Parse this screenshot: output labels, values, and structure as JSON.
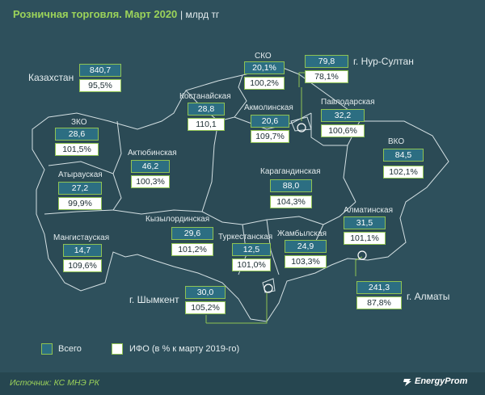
{
  "header": {
    "title": "Розничная торговля. Март 2020",
    "unit": "| млрд тг"
  },
  "kazakhstan": {
    "name": "Казахстан",
    "total": "840,7",
    "index": "95,5%"
  },
  "regions": [
    {
      "id": "sko",
      "name": "СКО",
      "total": "20,1%",
      "index": "100,2%"
    },
    {
      "id": "nur-sultan",
      "name": "г. Нур-Султан",
      "total": "79,8",
      "index": "78,1%"
    },
    {
      "id": "kostanay",
      "name": "Костанайская",
      "total": "28,8",
      "index": "110,1"
    },
    {
      "id": "akmola",
      "name": "Акмолинская",
      "total": "20,6",
      "index": "109,7%"
    },
    {
      "id": "pavlodar",
      "name": "Павлодарская",
      "total": "32,2",
      "index": "100,6%"
    },
    {
      "id": "zko",
      "name": "ЗКО",
      "total": "28,6",
      "index": "101,5%"
    },
    {
      "id": "aktobe",
      "name": "Актюбинская",
      "total": "46,2",
      "index": "100,3%"
    },
    {
      "id": "vko",
      "name": "ВКО",
      "total": "84,5",
      "index": "102,1%"
    },
    {
      "id": "atyrau",
      "name": "Атырауская",
      "total": "27,2",
      "index": "99,9%"
    },
    {
      "id": "karaganda",
      "name": "Карагандинская",
      "total": "88,0",
      "index": "104,3%"
    },
    {
      "id": "almaty-region",
      "name": "Алматинская",
      "total": "31,5",
      "index": "101,1%"
    },
    {
      "id": "kyzylorda",
      "name": "Кызылординская",
      "total": "29,6",
      "index": "101,2%"
    },
    {
      "id": "mangystau",
      "name": "Мангистауская",
      "total": "14,7",
      "index": "109,6%"
    },
    {
      "id": "turkestan",
      "name": "Туркестанская",
      "total": "12,5",
      "index": "101,0%"
    },
    {
      "id": "zhambyl",
      "name": "Жамбылская",
      "total": "24,9",
      "index": "103,3%"
    },
    {
      "id": "almaty-city",
      "name": "г. Алматы",
      "total": "241,3",
      "index": "87,8%"
    },
    {
      "id": "shymkent",
      "name": "г. Шымкент",
      "total": "30,0",
      "index": "105,2%"
    }
  ],
  "legend": {
    "total": "Всего",
    "index": "ИФО (в % к марту 2019-го)"
  },
  "footer": {
    "source": "Источник: КС МНЭ РК",
    "logo": "EnergyProm"
  },
  "colors": {
    "background": "#2e505c",
    "map_fill": "#2b4a55",
    "map_border": "#d0dde0",
    "accent": "#8fc352",
    "box_total": "#2c6e82"
  }
}
